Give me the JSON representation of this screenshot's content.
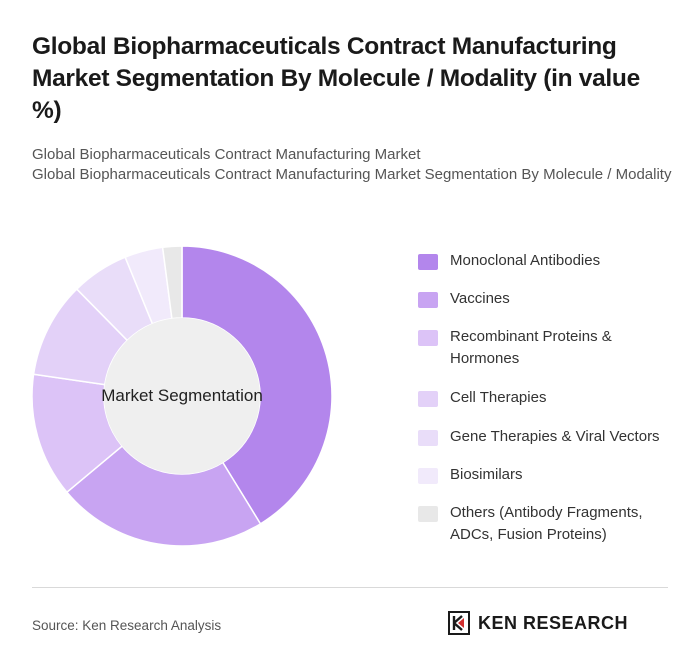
{
  "title": "Global Biopharmaceuticals Contract Manufacturing Market Segmentation By Molecule / Modality (in value %)",
  "subtitle_1": "Global Biopharmaceuticals Contract Manufacturing Market",
  "subtitle_2": "Global Biopharmaceuticals Contract Manufacturing Market Segmentation By Molecule / Modality",
  "source": "Source: Ken Research Analysis",
  "logo_text": "KEN RESEARCH",
  "chart_data": {
    "type": "pie",
    "variant": "donut",
    "center_label": "Market Segmentation",
    "legend_position": "right",
    "categories": [
      "Monoclonal Antibodies",
      "Vaccines",
      "Recombinant Proteins & Hormones",
      "Cell Therapies",
      "Gene Therapies & Viral Vectors",
      "Biosimilars",
      "Others (Antibody Fragments, ADCs, Fusion Proteins)"
    ],
    "values": [
      40,
      22,
      13,
      10,
      6,
      4,
      2
    ],
    "colors": [
      "#b386ec",
      "#c8a4f2",
      "#dcc3f7",
      "#e3d1f8",
      "#e9ddf9",
      "#f1eafb",
      "#e8e8e8"
    ]
  }
}
